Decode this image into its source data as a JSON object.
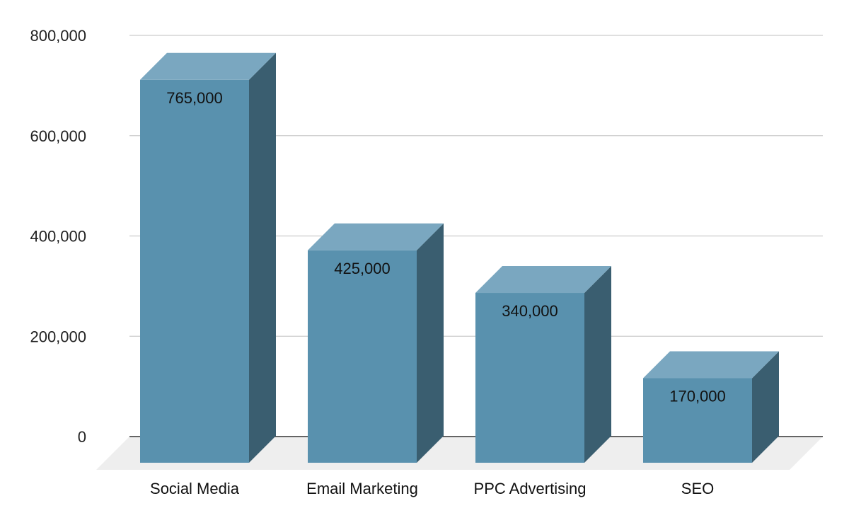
{
  "chart_data": {
    "type": "bar",
    "categories": [
      "Social Media",
      "Email Marketing",
      "PPC Advertising",
      "SEO"
    ],
    "values": [
      765000,
      425000,
      340000,
      170000
    ],
    "data_labels": [
      "765,000",
      "425,000",
      "340,000",
      "170,000"
    ],
    "title": "",
    "xlabel": "",
    "ylabel": "",
    "ylim": [
      0,
      800000
    ],
    "y_ticks": [
      {
        "value": 0,
        "label": "0"
      },
      {
        "value": 200000,
        "label": "200,000"
      },
      {
        "value": 400000,
        "label": "400,000"
      },
      {
        "value": 600000,
        "label": "600,000"
      },
      {
        "value": 800000,
        "label": "800,000"
      }
    ],
    "grid": true,
    "legend": "none",
    "style": "3d",
    "colors": {
      "bar_front": "#5991ae",
      "bar_top": "#7aa7c0",
      "bar_side": "#3a5e70",
      "floor": "#eeeeee",
      "gridline": "#cccccc",
      "baseline": "#333333"
    }
  }
}
